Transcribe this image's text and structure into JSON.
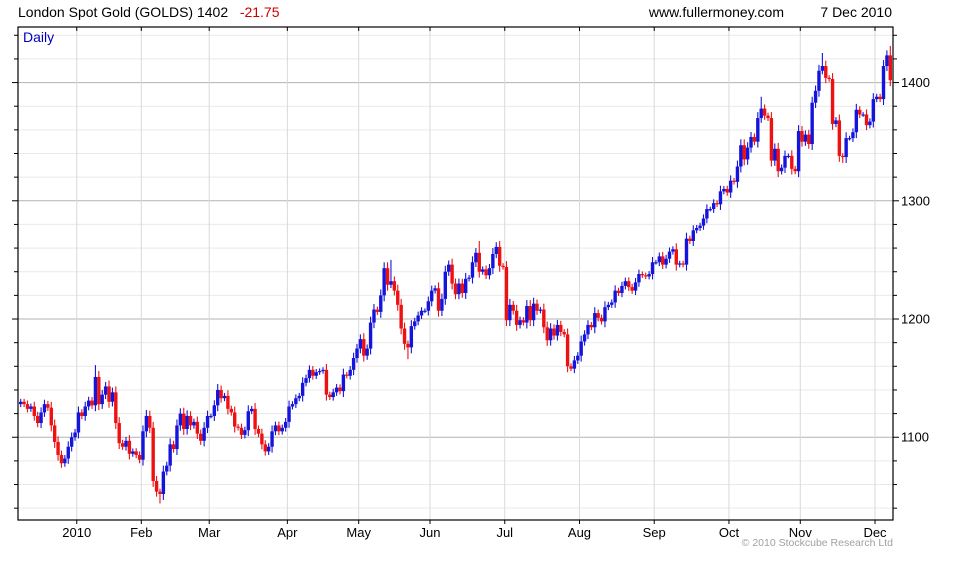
{
  "header": {
    "title_main": "London Spot Gold (GOLDS) 1402",
    "title_change": "-21.75",
    "site": "www.fullermoney.com",
    "date": "7 Dec 2010"
  },
  "chart": {
    "frequency_label": "Daily",
    "copyright": "© 2010 Stockcube Research Ltd"
  },
  "colors": {
    "up_bar": "#1414dd",
    "down_bar": "#ee1111",
    "frequency_text": "#0000bb",
    "change_text": "#cc0000",
    "major_grid": "#b3b3b3",
    "minor_grid": "#e9e9e9",
    "month_grid": "#d9d9d9",
    "axis": "#000000"
  },
  "chart_data": {
    "type": "ohlc-bar",
    "title": "London Spot Gold (GOLDS)",
    "frequency": "Daily",
    "last_price": 1402,
    "change": -21.75,
    "ylim": [
      1030,
      1447
    ],
    "y_ticks": [
      1100,
      1200,
      1300,
      1400
    ],
    "y_minor_step": 20,
    "x_labels": [
      "2010",
      "Feb",
      "Mar",
      "Apr",
      "May",
      "Jun",
      "Jul",
      "Aug",
      "Sep",
      "Oct",
      "Nov",
      "Dec"
    ],
    "month_start_indices": [
      17,
      36,
      56,
      79,
      100,
      121,
      143,
      165,
      187,
      209,
      230,
      252
    ],
    "closes": [
      1130,
      1128,
      1124,
      1126,
      1118,
      1112,
      1121,
      1128,
      1125,
      1110,
      1096,
      1085,
      1078,
      1082,
      1092,
      1100,
      1104,
      1121,
      1118,
      1126,
      1131,
      1127,
      1151,
      1128,
      1136,
      1143,
      1130,
      1138,
      1112,
      1095,
      1092,
      1097,
      1086,
      1088,
      1085,
      1081,
      1105,
      1118,
      1108,
      1063,
      1054,
      1052,
      1071,
      1076,
      1094,
      1090,
      1110,
      1120,
      1107,
      1118,
      1110,
      1113,
      1103,
      1097,
      1108,
      1118,
      1118,
      1127,
      1140,
      1133,
      1135,
      1124,
      1121,
      1109,
      1108,
      1102,
      1106,
      1122,
      1124,
      1107,
      1103,
      1094,
      1088,
      1092,
      1105,
      1110,
      1105,
      1108,
      1113,
      1126,
      1128,
      1133,
      1135,
      1146,
      1150,
      1157,
      1152,
      1155,
      1156,
      1157,
      1136,
      1134,
      1138,
      1142,
      1139,
      1153,
      1152,
      1157,
      1167,
      1175,
      1183,
      1169,
      1175,
      1197,
      1208,
      1206,
      1220,
      1243,
      1229,
      1232,
      1224,
      1212,
      1192,
      1179,
      1176,
      1194,
      1198,
      1203,
      1207,
      1207,
      1215,
      1224,
      1226,
      1207,
      1217,
      1240,
      1246,
      1230,
      1221,
      1230,
      1222,
      1234,
      1235,
      1248,
      1256,
      1240,
      1242,
      1237,
      1243,
      1255,
      1261,
      1245,
      1244,
      1199,
      1212,
      1207,
      1195,
      1199,
      1197,
      1211,
      1199,
      1213,
      1207,
      1208,
      1193,
      1182,
      1192,
      1186,
      1195,
      1189,
      1187,
      1160,
      1158,
      1165,
      1169,
      1181,
      1187,
      1195,
      1193,
      1205,
      1201,
      1198,
      1210,
      1212,
      1214,
      1224,
      1222,
      1228,
      1232,
      1227,
      1224,
      1231,
      1238,
      1237,
      1236,
      1238,
      1248,
      1248,
      1253,
      1246,
      1251,
      1257,
      1259,
      1246,
      1247,
      1246,
      1268,
      1266,
      1275,
      1277,
      1279,
      1285,
      1293,
      1293,
      1298,
      1297,
      1308,
      1310,
      1307,
      1317,
      1316,
      1329,
      1347,
      1335,
      1345,
      1354,
      1350,
      1370,
      1378,
      1372,
      1370,
      1334,
      1344,
      1325,
      1328,
      1338,
      1338,
      1327,
      1325,
      1359,
      1350,
      1356,
      1348,
      1383,
      1393,
      1410,
      1414,
      1404,
      1403,
      1365,
      1368,
      1338,
      1337,
      1353,
      1353,
      1358,
      1377,
      1373,
      1373,
      1364,
      1367,
      1386,
      1388,
      1386,
      1414,
      1423,
      1402
    ],
    "wick_highs": {
      "22": 1161,
      "109": 1250,
      "135": 1266,
      "140": 1265,
      "218": 1388,
      "236": 1425,
      "256": 1431
    },
    "wick_lows": {
      "41": 1044,
      "114": 1166,
      "162": 1156,
      "242": 1332
    }
  }
}
